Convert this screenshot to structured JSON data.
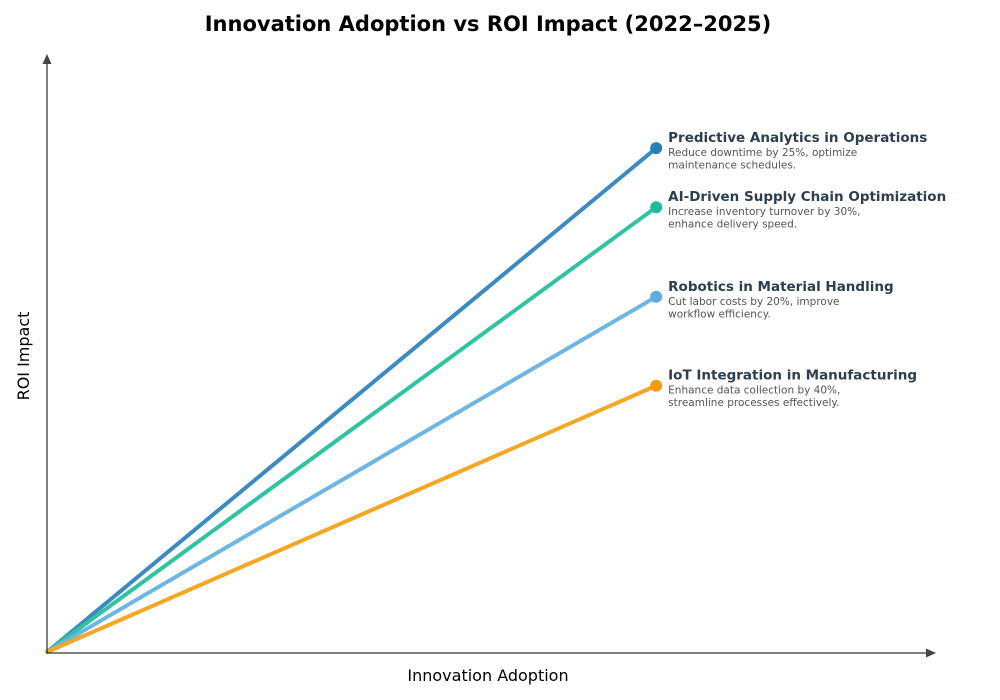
{
  "chart_data": {
    "type": "line",
    "title": "Innovation Adoption vs ROI Impact (2022–2025)",
    "xlabel": "Innovation Adoption",
    "ylabel": "ROI Impact",
    "xlim": [
      0,
      100
    ],
    "ylim": [
      0,
      100
    ],
    "grid": false,
    "ticks": false,
    "series": [
      {
        "name": "Predictive Analytics in Operations",
        "description": [
          "Reduce downtime by 25%, optimize",
          "maintenance schedules."
        ],
        "x": [
          0,
          68.6
        ],
        "y": [
          0,
          84.4
        ],
        "line_color": "#3b8bc2",
        "marker_color": "#2980b9"
      },
      {
        "name": "AI-Driven Supply Chain Optimization",
        "description": [
          "Increase inventory turnover by 30%,",
          "enhance delivery speed."
        ],
        "x": [
          0,
          68.6
        ],
        "y": [
          0,
          74.5
        ],
        "line_color": "#2ec4a0",
        "marker_color": "#1abc9c"
      },
      {
        "name": "Robotics in Material Handling",
        "description": [
          "Cut labor costs by 20%, improve",
          "workflow efficiency."
        ],
        "x": [
          0,
          68.6
        ],
        "y": [
          0,
          59.5
        ],
        "line_color": "#6cb6e3",
        "marker_color": "#5dade2"
      },
      {
        "name": "IoT Integration in Manufacturing",
        "description": [
          "Enhance data collection by 40%,",
          "streamline processes effectively."
        ],
        "x": [
          0,
          68.6
        ],
        "y": [
          0,
          44.6
        ],
        "line_color": "#f5a623",
        "marker_color": "#f39c12"
      }
    ]
  }
}
